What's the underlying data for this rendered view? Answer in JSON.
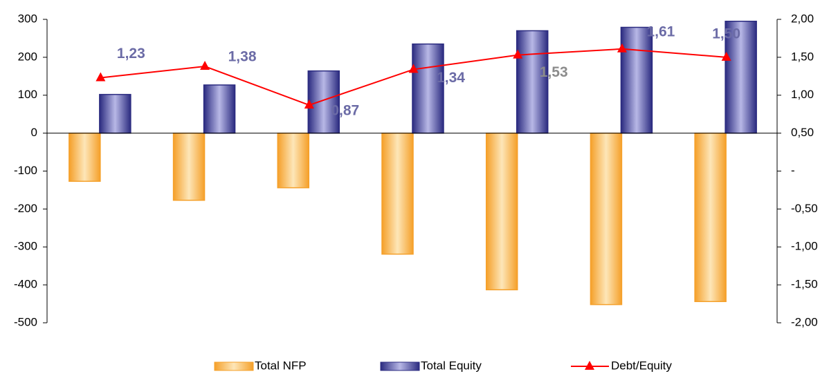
{
  "chart_data": {
    "type": "bar",
    "categories": [
      null,
      null,
      null,
      null,
      null,
      null,
      null
    ],
    "series": [
      {
        "name": "Total NFP",
        "type": "bar",
        "color": "#f5a02a",
        "values": [
          -127,
          -177,
          -144,
          -319,
          -413,
          -452,
          -444
        ]
      },
      {
        "name": "Total Equity",
        "type": "bar",
        "color": "#2b2b80",
        "values": [
          102,
          127,
          164,
          235,
          270,
          279,
          295
        ]
      },
      {
        "name": "Debt/Equity",
        "type": "line",
        "axis": "y2",
        "color": "#ff0000",
        "values": [
          1.23,
          1.38,
          0.87,
          1.34,
          1.53,
          1.61,
          1.5
        ],
        "value_labels": [
          "1,23",
          "1,38",
          "0,87",
          "1,34",
          "1,53",
          "1,61",
          "1,50"
        ]
      }
    ],
    "ylim": [
      -500,
      300
    ],
    "yticks": [
      -500,
      -400,
      -300,
      -200,
      -100,
      0,
      100,
      200,
      300
    ],
    "y2lim": [
      -2,
      2
    ],
    "y2ticks": [
      {
        "value": -2,
        "label": "-2,00"
      },
      {
        "value": -1.5,
        "label": "-1,50"
      },
      {
        "value": -1,
        "label": "-1,00"
      },
      {
        "value": -0.5,
        "label": "-0,50"
      },
      {
        "value": 0,
        "label": "-"
      },
      {
        "value": 0.5,
        "label": "0,50"
      },
      {
        "value": 1,
        "label": "1,00"
      },
      {
        "value": 1.5,
        "label": "1,50"
      },
      {
        "value": 2,
        "label": "2,00"
      }
    ],
    "legend": "bottom"
  }
}
